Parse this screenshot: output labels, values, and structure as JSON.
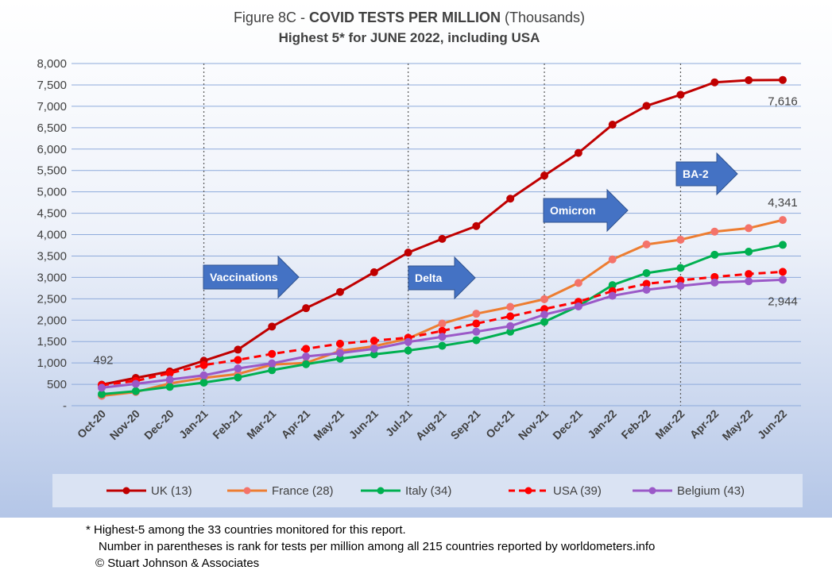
{
  "chart_data": {
    "type": "line",
    "title_prefix": "Figure 8C - ",
    "title_bold": "COVID TESTS PER MILLION",
    "title_suffix": " (Thousands)",
    "subtitle": "Highest 5* for JUNE 2022, including USA",
    "categories": [
      "Oct-20",
      "Nov-20",
      "Dec-20",
      "Jan-21",
      "Feb-21",
      "Mar-21",
      "Apr-21",
      "May-21",
      "Jun-21",
      "Jul-21",
      "Aug-21",
      "Sep-21",
      "Oct-21",
      "Nov-21",
      "Dec-21",
      "Jan-22",
      "Feb-22",
      "Mar-22",
      "Apr-22",
      "May-22",
      "Jun-22"
    ],
    "y_ticks": [
      "-",
      "500",
      "1,000",
      "1,500",
      "2,000",
      "2,500",
      "3,000",
      "3,500",
      "4,000",
      "4,500",
      "5,000",
      "5,500",
      "6,000",
      "6,500",
      "7,000",
      "7,500",
      "8,000"
    ],
    "ylim": [
      0,
      8000
    ],
    "grid": "horizontal",
    "legend_position": "bottom",
    "series": [
      {
        "name": "UK (13)",
        "color": "#c00000",
        "marker": "#c00000",
        "dashed": false,
        "values": [
          492,
          650,
          800,
          1050,
          1310,
          1850,
          2280,
          2660,
          3120,
          3580,
          3900,
          4200,
          4840,
          5380,
          5910,
          6570,
          7010,
          7270,
          7560,
          7610,
          7616
        ]
      },
      {
        "name": "France (28)",
        "color": "#ed7d31",
        "marker": "#f4736a",
        "dashed": false,
        "values": [
          230,
          320,
          520,
          650,
          740,
          960,
          1000,
          1280,
          1390,
          1570,
          1920,
          2150,
          2310,
          2490,
          2870,
          3420,
          3770,
          3880,
          4070,
          4150,
          4341
        ]
      },
      {
        "name": "Italy (34)",
        "color": "#00b050",
        "marker": "#00b050",
        "dashed": false,
        "values": [
          270,
          340,
          440,
          540,
          660,
          830,
          970,
          1100,
          1200,
          1290,
          1400,
          1530,
          1730,
          1960,
          2330,
          2820,
          3100,
          3220,
          3530,
          3600,
          3760
        ]
      },
      {
        "name": "USA (39)",
        "color": "#ff0000",
        "marker": "#ff0000",
        "dashed": true,
        "values": [
          480,
          580,
          760,
          950,
          1070,
          1210,
          1330,
          1450,
          1520,
          1590,
          1750,
          1920,
          2090,
          2260,
          2430,
          2680,
          2850,
          2930,
          3010,
          3080,
          3130
        ]
      },
      {
        "name": "Belgium (43)",
        "color": "#9b59c8",
        "marker": "#9b59c8",
        "dashed": false,
        "values": [
          420,
          510,
          610,
          710,
          870,
          990,
          1150,
          1230,
          1330,
          1490,
          1610,
          1730,
          1860,
          2130,
          2320,
          2570,
          2710,
          2800,
          2880,
          2910,
          2944
        ]
      }
    ],
    "data_labels": [
      {
        "text": "492",
        "series": 0,
        "index": 0
      },
      {
        "text": "7,616",
        "series": 0,
        "index": 20
      },
      {
        "text": "4,341",
        "series": 1,
        "index": 20
      },
      {
        "text": "2,944",
        "series": 4,
        "index": 20
      }
    ],
    "annotations": [
      {
        "text": "Vaccinations",
        "at_index": 3
      },
      {
        "text": "Delta",
        "at_index": 9
      },
      {
        "text": "Omicron",
        "at_index": 13
      },
      {
        "text": "BA-2",
        "at_index": 17
      }
    ],
    "arrow_color": "#4472c4"
  },
  "footnotes": [
    "* Highest-5 among the 33 countries monitored for this report.",
    "Number in parentheses is rank for tests per million among all 215 countries reported by worldometers.info",
    "© Stuart Johnson & Associates"
  ]
}
